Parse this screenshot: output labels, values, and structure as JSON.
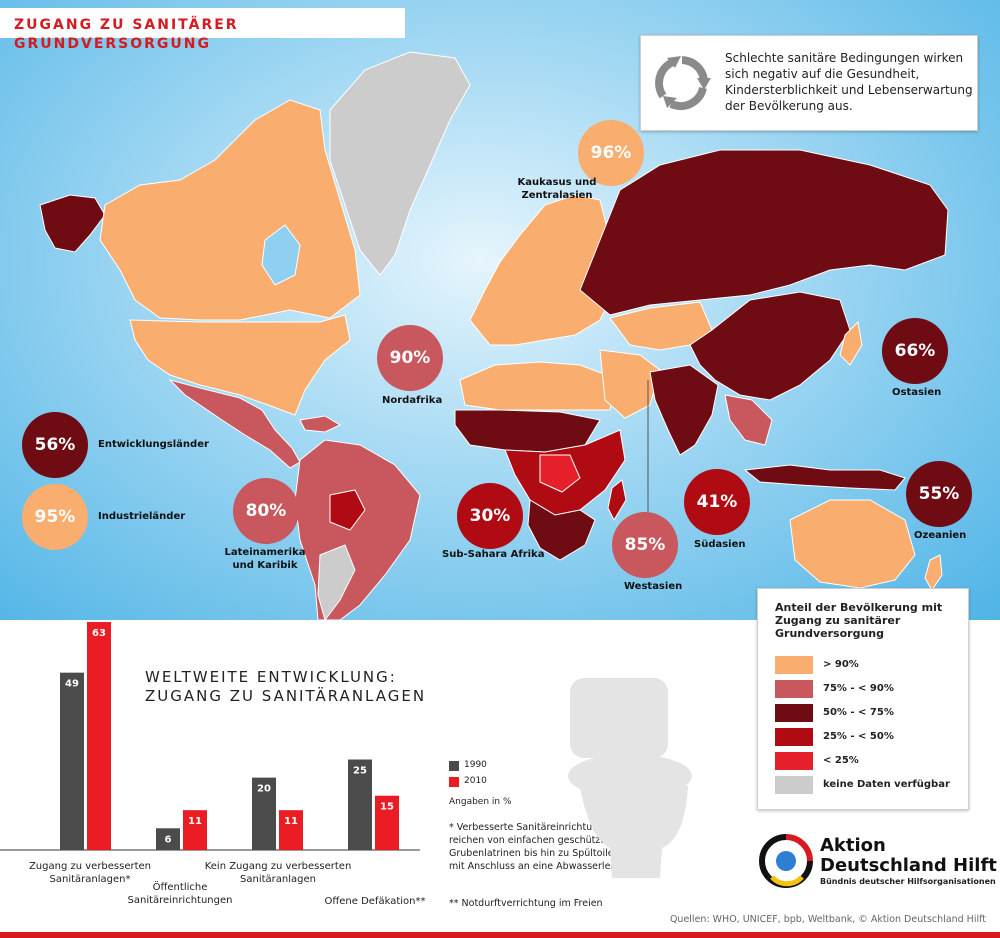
{
  "header": {
    "title": "ZUGANG ZU SANITÄRER GRUNDVERSORGUNG"
  },
  "info_box": {
    "icon": "recycle-arrows-icon",
    "text": "Schlechte sanitäre Bedingungen wirken sich negativ auf die Gesundheit, Kindersterblichkeit und Lebenserwartung der Bevölkerung aus."
  },
  "colors": {
    "over_90": "#f9ad6e",
    "75_90": "#c8585e",
    "50_75": "#6e0b13",
    "25_50": "#b00a12",
    "under_25": "#e5202b",
    "no_data": "#cccccc",
    "gray_bar": "#4b4b4b",
    "red_bar": "#ec1c24",
    "brand_red": "#d71920"
  },
  "regions": [
    {
      "id": "kaukasus",
      "value": "96%",
      "label": "Kaukasus und Zentralasien",
      "category": "over_90"
    },
    {
      "id": "nordafrika",
      "value": "90%",
      "label": "Nordafrika",
      "category": "75_90"
    },
    {
      "id": "ostasien",
      "value": "66%",
      "label": "Ostasien",
      "category": "50_75"
    },
    {
      "id": "entwicklungslaender",
      "value": "56%",
      "label": "Entwicklungsländer",
      "category": "50_75"
    },
    {
      "id": "industrielaender",
      "value": "95%",
      "label": "Industrieländer",
      "category": "over_90"
    },
    {
      "id": "lateinamerika",
      "value": "80%",
      "label": "Lateinamerika und Karibik",
      "category": "75_90"
    },
    {
      "id": "subsahara",
      "value": "30%",
      "label": "Sub-Sahara Afrika",
      "category": "25_50"
    },
    {
      "id": "westasien",
      "value": "85%",
      "label": "Westasien",
      "category": "75_90"
    },
    {
      "id": "suedasien",
      "value": "41%",
      "label": "Südasien",
      "category": "25_50"
    },
    {
      "id": "ozeanien",
      "value": "55%",
      "label": "Ozeanien",
      "category": "50_75"
    }
  ],
  "map_legend": {
    "title": "Anteil der Bevölkerung mit Zugang zu sanitärer Grundversorgung",
    "items": [
      {
        "label": "> 90%",
        "color": "#f9ad6e"
      },
      {
        "label": "75% - < 90%",
        "color": "#c8585e"
      },
      {
        "label": "50% - < 75%",
        "color": "#6e0b13"
      },
      {
        "label": "25% - < 50%",
        "color": "#b00a12"
      },
      {
        "label": "< 25%",
        "color": "#e5202b"
      },
      {
        "label": "keine Daten verfügbar",
        "color": "#cccccc"
      }
    ]
  },
  "chart_data": {
    "type": "bar",
    "title": "WELTWEITE ENTWICKLUNG: ZUGANG ZU SANITÄRANLAGEN",
    "categories": [
      "Zugang zu verbesserten Sanitäranlagen*",
      "Öffentliche Sanitäreinrichtungen",
      "Kein Zugang zu verbesserten Sanitäranlagen",
      "Offene Defäkation**"
    ],
    "series": [
      {
        "name": "1990",
        "color": "#4b4b4b",
        "values": [
          49,
          6,
          20,
          25
        ]
      },
      {
        "name": "2010",
        "color": "#ec1c24",
        "values": [
          63,
          11,
          11,
          15
        ]
      }
    ],
    "unit_note": "Angaben in %",
    "ylim": [
      0,
      63
    ]
  },
  "footnotes": {
    "f1": "* Verbesserte Sanitäreinrichtungen reichen von einfachen geschützten Grubenlatrinen bis hin zu Spültoiletten mit Anschluss an eine Abwasserleitung",
    "f2": "** Notdurftverrichtung im Freien"
  },
  "decor": {
    "toilet": "toilet-icon"
  },
  "brand": {
    "name_line1": "Aktion",
    "name_line2": "Deutschland Hilft",
    "tagline": "Bündnis deutscher Hilfsorganisationen",
    "logo": "aktion-deutschland-hilft-logo"
  },
  "source": "Quellen: WHO, UNICEF, bpb, Weltbank, © Aktion Deutschland Hilft"
}
